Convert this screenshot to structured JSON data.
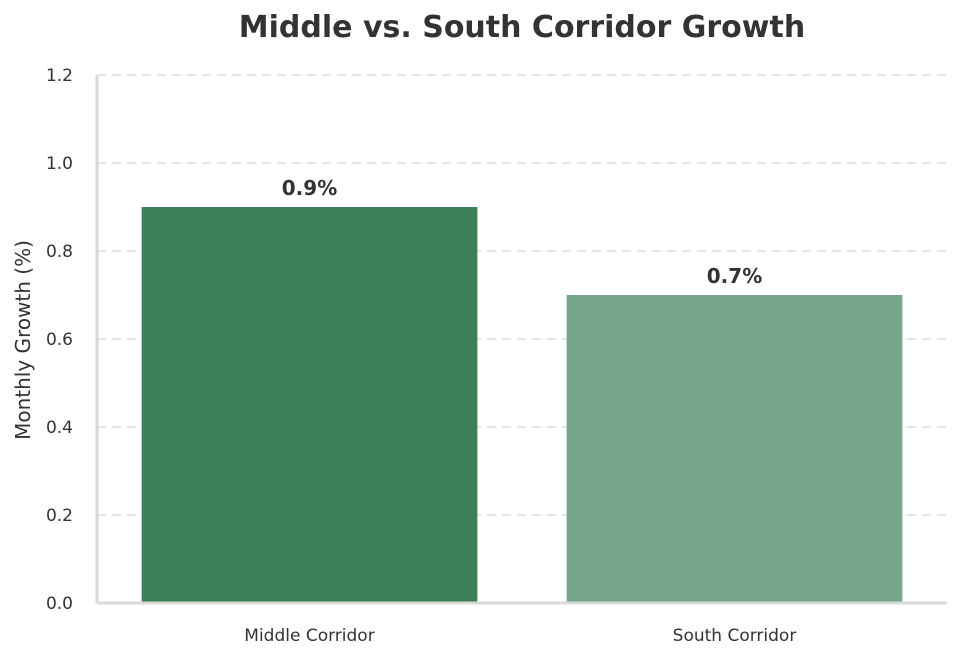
{
  "chart_data": {
    "type": "bar",
    "title": "Middle vs. South Corridor Growth",
    "xlabel": "",
    "ylabel": "Monthly Growth (%)",
    "categories": [
      "Middle Corridor",
      "South Corridor"
    ],
    "values": [
      0.9,
      0.7
    ],
    "data_labels": [
      "0.9%",
      "0.7%"
    ],
    "bar_colors": [
      "#3b7f58",
      "#76a78b"
    ],
    "ylim": [
      0,
      1.2
    ],
    "yticks": [
      0.0,
      0.2,
      0.4,
      0.6,
      0.8,
      1.0,
      1.2
    ],
    "ytick_labels": [
      "0.0",
      "0.2",
      "0.4",
      "0.6",
      "0.8",
      "1.0",
      "1.2"
    ],
    "grid": "y-dashed",
    "legend": "none"
  },
  "colors": {
    "text": "#333333",
    "axis": "#d9d9d9",
    "grid": "#e6e6e6",
    "background": "#ffffff"
  }
}
